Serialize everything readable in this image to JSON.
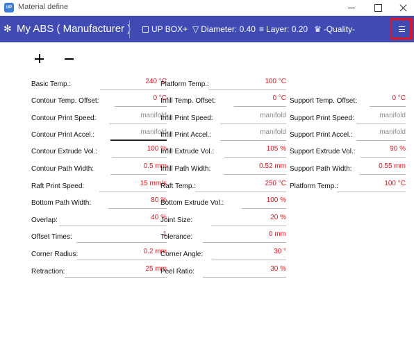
{
  "window": {
    "title": "Material define",
    "icon": "app-icon"
  },
  "header": {
    "material": "My ABS ( Manufacturer )",
    "printer": "UP BOX+",
    "diameter": "Diameter: 0.40",
    "layer": "Layer: 0.20",
    "quality": "-Quality-"
  },
  "toolbar": {
    "add": "+",
    "remove": "−"
  },
  "columns": [
    [
      {
        "label": "Basic Temp.:",
        "value": "240 °C"
      },
      {
        "label": "Contour Temp. Offset:",
        "value": "0 °C"
      },
      {
        "label": "Contour Print Speed:",
        "value": "manifold"
      },
      {
        "label": "Contour Print Accel.:",
        "value": "manifold"
      },
      {
        "label": "Contour Extrude Vol.:",
        "value": "100 %"
      },
      {
        "label": "Contour Path Width:",
        "value": "0.5 mm"
      },
      {
        "label": "Raft Print Speed:",
        "value": "15 mm/s"
      },
      {
        "label": "Bottom Path Width:",
        "value": "80 %"
      },
      {
        "label": "Overlap:",
        "value": "40 %"
      },
      {
        "label": "Offset Times:",
        "value": "1"
      },
      {
        "label": "Corner Radius:",
        "value": "0.2 mm"
      },
      {
        "label": "Retraction:",
        "value": "25 mm"
      }
    ],
    [
      {
        "label": "Platform Temp.:",
        "value": "100 °C"
      },
      {
        "label": "Infill Temp. Offset:",
        "value": "0 °C"
      },
      {
        "label": "Infill Print Speed:",
        "value": "manifold"
      },
      {
        "label": "Infill Print Accel.:",
        "value": "manifold"
      },
      {
        "label": "Infill Extrude Vol.:",
        "value": "105 %"
      },
      {
        "label": "Infill Path Width:",
        "value": "0.52 mm"
      },
      {
        "label": "Raft Temp.:",
        "value": "250 °C"
      },
      {
        "label": "Bottom Extrude Vol.:",
        "value": "100 %"
      },
      {
        "label": "Joint Size:",
        "value": "20 %"
      },
      {
        "label": "Tolerance:",
        "value": "0 mm"
      },
      {
        "label": "Corner Angle:",
        "value": "30 °"
      },
      {
        "label": "Peel Ratio:",
        "value": "30 %"
      }
    ],
    [
      {
        "label": "Support Temp. Offset:",
        "value": "0 °C"
      },
      {
        "label": "Support Print Speed:",
        "value": "manifold"
      },
      {
        "label": "Support Print Accel.:",
        "value": "manifold"
      },
      {
        "label": "Support Extrude Vol.:",
        "value": "90 %"
      },
      {
        "label": "Support Path Width:",
        "value": "0.55 mm"
      },
      {
        "label": "Platform Temp.:",
        "value": "100 °C"
      }
    ]
  ],
  "colors": {
    "header": "#3f4bb3",
    "value": "#e5141e",
    "placeholder": "#8a8a8a",
    "highlight": "#e8141f"
  }
}
